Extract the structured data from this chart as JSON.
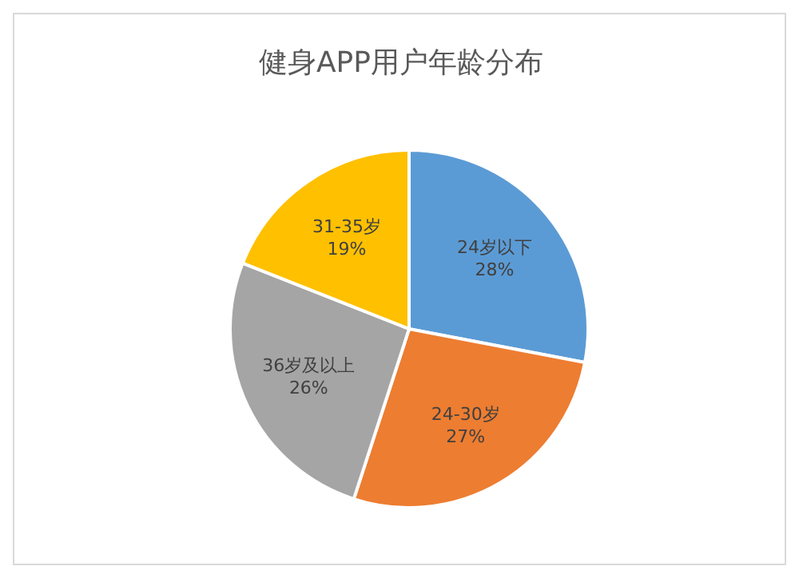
{
  "chart_data": {
    "type": "pie",
    "title": "健身APP用户年龄分布",
    "categories": [
      "24岁以下",
      "24-30岁",
      "36岁及以上",
      "31-35岁"
    ],
    "values": [
      28,
      27,
      26,
      19
    ],
    "value_labels": [
      "28%",
      "27%",
      "26%",
      "19%"
    ],
    "colors": [
      "#5b9bd5",
      "#ed7d31",
      "#a5a5a5",
      "#ffc000"
    ]
  }
}
